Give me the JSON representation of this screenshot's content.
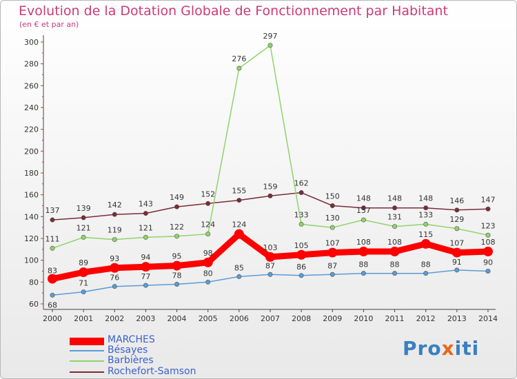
{
  "header": {
    "title": "Evolution de la Dotation Globale de Fonctionnement par Habitant",
    "subtitle": "(en € et par an)"
  },
  "logo": {
    "text": "Proxiti"
  },
  "chart_data": {
    "type": "line",
    "title": "Evolution de la Dotation Globale de Fonctionnement par Habitant",
    "subtitle": "(en € et par an)",
    "xlabel": "",
    "ylabel": "",
    "x": [
      "2000",
      "2001",
      "2002",
      "2003",
      "2004",
      "2005",
      "2006",
      "2007",
      "2008",
      "2009",
      "2010",
      "2011",
      "2012",
      "2013",
      "2014"
    ],
    "ylim": [
      60,
      300
    ],
    "yticks": [
      60,
      80,
      100,
      120,
      140,
      160,
      180,
      200,
      220,
      240,
      260,
      280,
      300
    ],
    "grid": false,
    "legend_position": "bottom-left",
    "series": [
      {
        "name": "MARCHES",
        "color": "#ff0000",
        "values": [
          83,
          89,
          93,
          94,
          95,
          98,
          124,
          103,
          105,
          107,
          108,
          108,
          115,
          107,
          108
        ]
      },
      {
        "name": "Bésayes",
        "color": "#5b9bd5",
        "values": [
          68,
          71,
          76,
          77,
          78,
          80,
          85,
          87,
          86,
          87,
          88,
          88,
          88,
          91,
          90
        ]
      },
      {
        "name": "Barbières",
        "color": "#8fd36a",
        "values": [
          111,
          121,
          119,
          121,
          122,
          124,
          276,
          297,
          133,
          130,
          137,
          131,
          133,
          129,
          123
        ]
      },
      {
        "name": "Rochefort-Samson",
        "color": "#7a2b36",
        "values": [
          137,
          139,
          142,
          143,
          149,
          152,
          155,
          159,
          162,
          150,
          148,
          148,
          148,
          146,
          147
        ]
      }
    ]
  }
}
